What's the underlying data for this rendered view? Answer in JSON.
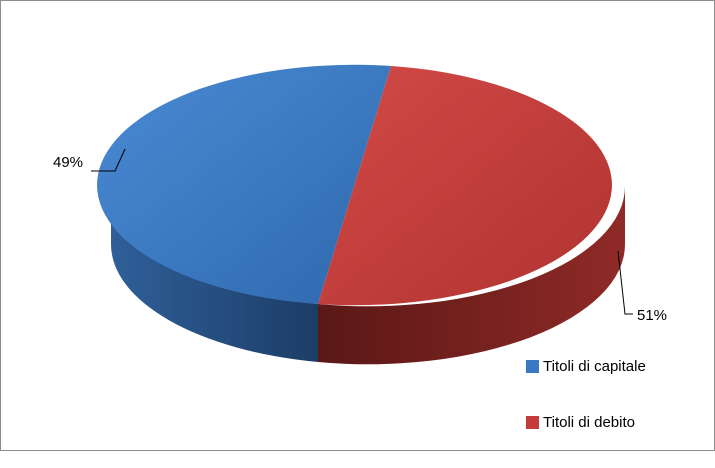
{
  "chart_data": {
    "type": "pie",
    "style": "3d",
    "title": "",
    "series": [
      {
        "name": "Titoli di capitale",
        "value": 49,
        "label": "49%",
        "color": "#3a78c3"
      },
      {
        "name": "Titoli di debito",
        "value": 51,
        "label": "51%",
        "color": "#c43b3b"
      }
    ],
    "legend_position": "bottom-right"
  }
}
